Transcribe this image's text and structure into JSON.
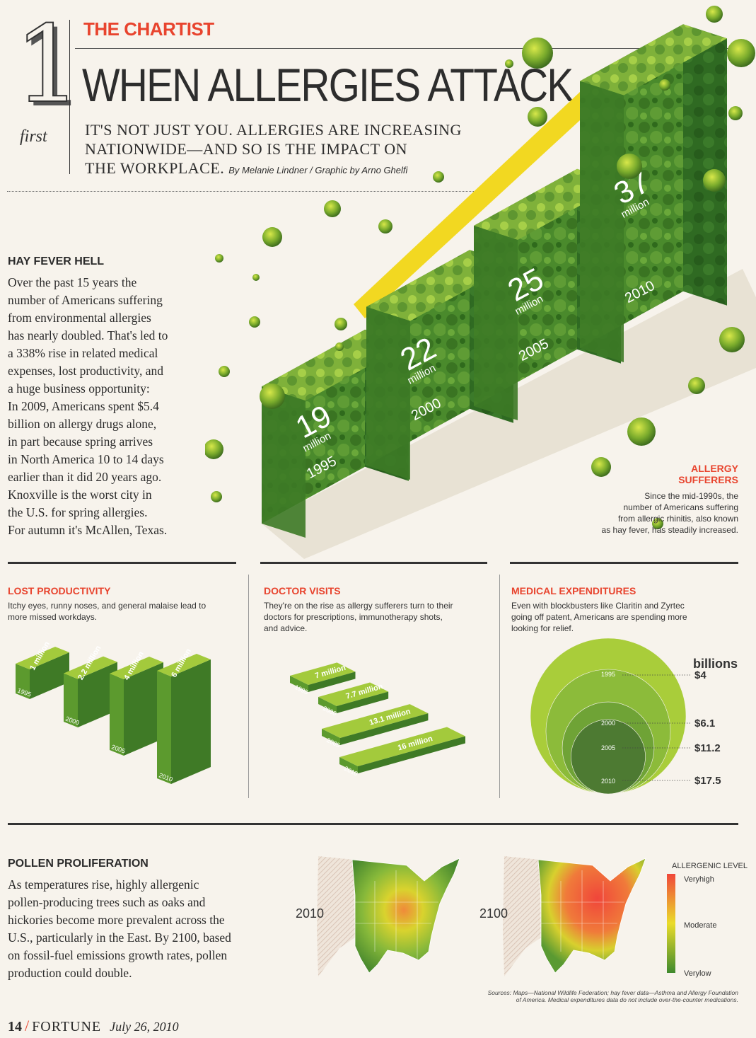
{
  "header": {
    "number": "1",
    "first": "first",
    "section": "THE CHARTIST",
    "headline": "WHEN ALLERGIES ATTACK",
    "dek_lines": [
      "IT'S NOT JUST YOU. ALLERGIES ARE INCREASING",
      "NATIONWIDE—AND SO IS THE IMPACT ON",
      "THE WORKPLACE."
    ],
    "byline": "By Melanie Lindner / Graphic by Arno Ghelfi"
  },
  "hay_fever": {
    "title": "HAY FEVER HELL",
    "body_lines": [
      "Over the past 15 years the",
      "number of Americans suffering",
      "from environmental allergies",
      "has nearly doubled. That's led to",
      "a 338% rise in related medical",
      "expenses, lost productivity, and",
      "a huge business opportunity:",
      "In 2009, Americans spent $5.4",
      "billion on allergy drugs alone,",
      "in part because spring arrives",
      "in North America 10 to 14 days",
      "earlier than it did 20 years ago.",
      "Knoxville is the worst city in",
      "the U.S. for spring allergies.",
      "For autumn it's McAllen, Texas."
    ]
  },
  "sufferers": {
    "title_lines": [
      "ALLERGY",
      "SUFFERERS"
    ],
    "desc_lines": [
      "Since the mid-1990s, the",
      "number of Americans suffering",
      "from allergic rhinitis, also known",
      "as hay fever, has steadily increased."
    ]
  },
  "lost_productivity": {
    "title": "LOST PRODUCTIVITY",
    "desc_lines": [
      "Itchy eyes, runny noses, and general malaise lead to",
      "more missed workdays."
    ]
  },
  "doctor_visits": {
    "title": "DOCTOR VISITS",
    "desc_lines": [
      "They're on the rise as allergy sufferers turn to their",
      "doctors for prescriptions, immunotherapy shots,",
      "and advice."
    ]
  },
  "medical_expenditures": {
    "title": "MEDICAL EXPENDITURES",
    "desc_lines": [
      "Even with blockbusters like Claritin and Zyrtec",
      "going off patent, Americans are spending more",
      "looking for relief."
    ],
    "unit": "billions"
  },
  "pollen": {
    "title": "POLLEN PROLIFERATION",
    "body_lines": [
      "As temperatures rise, highly allergenic",
      "pollen-producing trees such as oaks and",
      "hickories become more prevalent across the",
      "U.S., particularly in the East. By 2100, based",
      "on fossil-fuel emissions growth rates, pollen",
      "production could double."
    ],
    "map_labels": [
      "2010",
      "2100"
    ],
    "legend": {
      "title": "ALLERGENIC LEVEL",
      "high": "Veryhigh",
      "mid": "Moderate",
      "low": "Verylow"
    }
  },
  "sources_lines": [
    "Sources: Maps—National Wildlife Federation; hay fever data—Asthma and Allergy Foundation",
    "of America. Medical expenditures data do not include over-the-counter medications."
  ],
  "footer": {
    "page": "14",
    "magazine": "FORTUNE",
    "date": "July 26, 2010"
  },
  "colors": {
    "accent_red": "#e8442e",
    "green_dark": "#3f7a2a",
    "green_mid": "#6fa336",
    "green_light": "#a9cd3a",
    "yellow": "#f0d820"
  },
  "chart_data": [
    {
      "type": "bar",
      "title": "ALLERGY SUFFERERS",
      "categories": [
        "1995",
        "2000",
        "2005",
        "2010"
      ],
      "values": [
        19,
        22,
        25,
        37
      ],
      "value_labels": [
        "19",
        "22",
        "25",
        "37"
      ],
      "unit_label": "million"
    },
    {
      "type": "bar",
      "title": "LOST PRODUCTIVITY",
      "categories": [
        "1995",
        "2000",
        "2005",
        "2010"
      ],
      "values": [
        1,
        2.2,
        4,
        6
      ],
      "value_labels": [
        "1 million",
        "2.2 million",
        "4 million",
        "6 million"
      ]
    },
    {
      "type": "bar",
      "title": "DOCTOR VISITS",
      "categories": [
        "1995",
        "2000",
        "2005",
        "2010"
      ],
      "values": [
        7,
        7.7,
        13.1,
        16
      ],
      "value_labels": [
        "7 million",
        "7.7 million",
        "13.1 million",
        "16 million"
      ]
    },
    {
      "type": "area",
      "title": "MEDICAL EXPENDITURES",
      "categories": [
        "1995",
        "2000",
        "2005",
        "2010"
      ],
      "values": [
        4,
        6.1,
        11.2,
        17.5
      ],
      "value_labels": [
        "$4",
        "$6.1",
        "$11.2",
        "$17.5"
      ],
      "unit_label": "billions"
    }
  ]
}
